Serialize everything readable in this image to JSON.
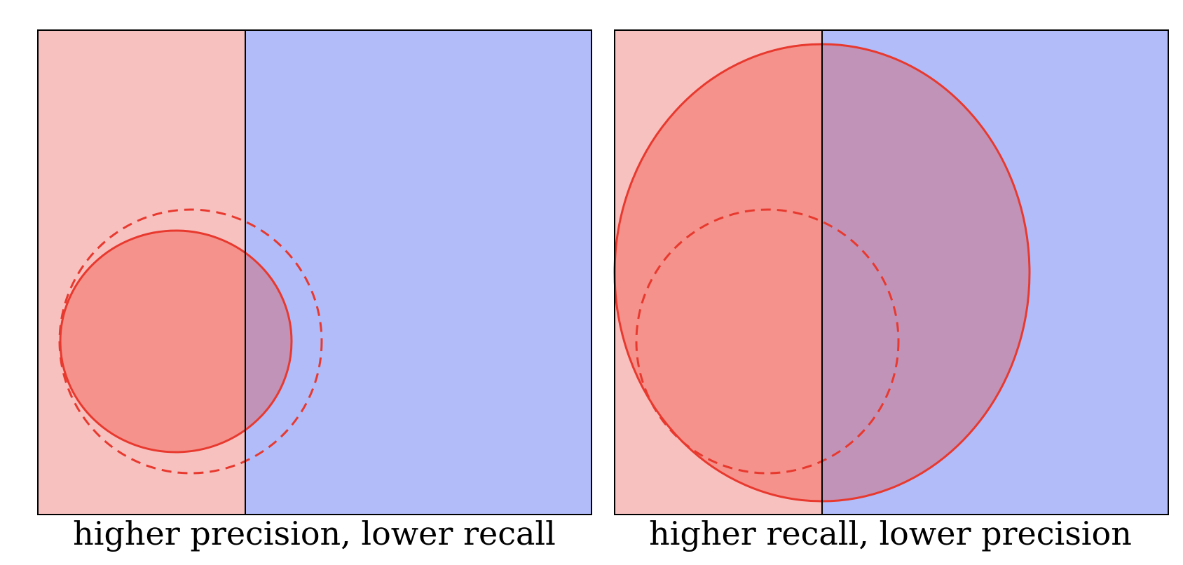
{
  "panels": [
    {
      "id": "left",
      "caption": "higher precision, lower recall"
    },
    {
      "id": "right",
      "caption": "higher recall, lower precision"
    }
  ],
  "colors": {
    "negative_region": "#b1bcf9",
    "positive_region": "#f7c1c0",
    "selected_region": "#f4928b",
    "selected_on_negative": "#c293b8",
    "circle_stroke": "#e8392e",
    "border": "#000000"
  }
}
